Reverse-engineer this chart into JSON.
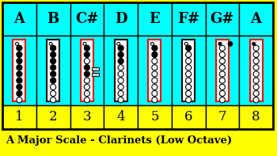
{
  "title": "A Major Scale - Clarinets (Low Octave)",
  "bg_color": "#FFFF00",
  "cyan_color": "#00FFFF",
  "header_labels": [
    "A",
    "B",
    "C#",
    "D",
    "E",
    "F#",
    "G#",
    "A"
  ],
  "number_labels": [
    "1",
    "2",
    "3",
    "4",
    "5",
    "6",
    "7",
    "8"
  ],
  "red_border": [
    true,
    false,
    true,
    false,
    true,
    false,
    true,
    true
  ],
  "fingerings": [
    {
      "reg": false,
      "holes": [
        false,
        true,
        true,
        true,
        true,
        true,
        true,
        true,
        true,
        false
      ]
    },
    {
      "reg": false,
      "holes": [
        false,
        true,
        true,
        true,
        true,
        true,
        true,
        false,
        false,
        false
      ]
    },
    {
      "reg": false,
      "holes": [
        false,
        true,
        true,
        false,
        true,
        true,
        false,
        false,
        false,
        false
      ]
    },
    {
      "reg": false,
      "holes": [
        false,
        true,
        true,
        true,
        false,
        false,
        false,
        false,
        false,
        false
      ]
    },
    {
      "reg": false,
      "holes": [
        false,
        true,
        true,
        false,
        false,
        false,
        false,
        false,
        false,
        false
      ]
    },
    {
      "reg": false,
      "holes": [
        false,
        true,
        false,
        false,
        false,
        false,
        false,
        false,
        false,
        false
      ]
    },
    {
      "reg": true,
      "holes": [
        false,
        false,
        false,
        false,
        false,
        false,
        false,
        false,
        false,
        false
      ]
    },
    {
      "reg": true,
      "holes": [
        false,
        false,
        false,
        false,
        false,
        false,
        false,
        false,
        false,
        false
      ]
    }
  ],
  "has_side_key": [
    false,
    false,
    true,
    false,
    false,
    false,
    true,
    false
  ],
  "side_key_filled": [
    false,
    false,
    false,
    false,
    false,
    false,
    true,
    false
  ]
}
